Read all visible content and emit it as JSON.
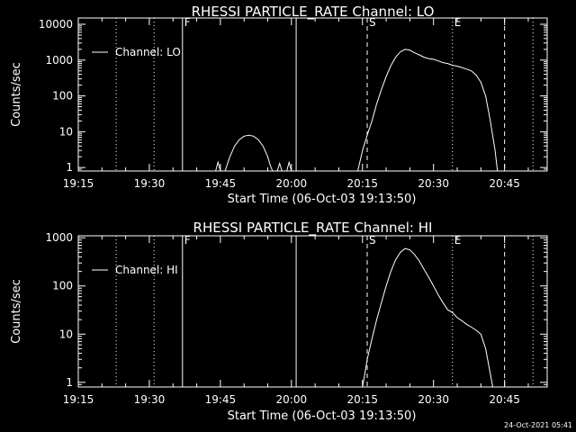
{
  "footer_timestamp": "24-Oct-2021 05:41",
  "chart_data": [
    {
      "type": "line",
      "title": "RHESSI PARTICLE_RATE Channel: LO",
      "xlabel": "Start Time (06-Oct-03 19:13:50)",
      "ylabel": "Counts/sec",
      "yscale": "log",
      "xlim_minutes_after_1915": [
        0,
        99
      ],
      "ylim": [
        0.8,
        15000
      ],
      "x_tick_labels": [
        "19:15",
        "19:30",
        "19:45",
        "20:00",
        "20:15",
        "20:30",
        "20:45"
      ],
      "y_tick_labels": [
        "1",
        "10",
        "100",
        "1000",
        "10000"
      ],
      "y_tick_values": [
        1,
        10,
        100,
        1000,
        10000
      ],
      "legend": {
        "label": "Channel: LO",
        "position": "top-left"
      },
      "markers": [
        {
          "time": "19:23",
          "style": "dotted",
          "label": ""
        },
        {
          "time": "19:37",
          "style": "solid",
          "label": "F"
        },
        {
          "time": "19:31",
          "style": "dotted",
          "label": ""
        },
        {
          "time": "20:01",
          "style": "solid",
          "label": ""
        },
        {
          "time": "20:16",
          "style": "dashed",
          "label": "S"
        },
        {
          "time": "20:34",
          "style": "dotted",
          "label": "E"
        },
        {
          "time": "20:45",
          "style": "dashed",
          "label": ""
        },
        {
          "time": "20:51",
          "style": "dotted",
          "label": ""
        }
      ],
      "series": [
        {
          "segments": [
            [
              [
                "19:44.0",
                0.8
              ],
              [
                "19:44.5",
                1.4
              ],
              [
                "19:45.0",
                0.8
              ]
            ],
            [
              [
                "19:46.0",
                0.8
              ],
              [
                "19:47.0",
                2
              ],
              [
                "19:48.0",
                4
              ],
              [
                "19:49.0",
                6
              ],
              [
                "19:50.0",
                7.5
              ],
              [
                "19:51.0",
                8
              ],
              [
                "19:52.0",
                7.5
              ],
              [
                "19:53.0",
                6
              ],
              [
                "19:54.0",
                4
              ],
              [
                "19:55.0",
                2
              ],
              [
                "19:55.5",
                1.2
              ],
              [
                "19:56.0",
                0.8
              ]
            ],
            [
              [
                "19:57.0",
                0.8
              ],
              [
                "19:57.5",
                1.3
              ],
              [
                "19:58.0",
                0.8
              ]
            ],
            [
              [
                "19:59.0",
                0.8
              ],
              [
                "19:59.5",
                1.4
              ],
              [
                "20:00.0",
                0.8
              ]
            ],
            [
              [
                "20:14.0",
                0.8
              ],
              [
                "20:15.0",
                3
              ],
              [
                "20:16.0",
                8
              ],
              [
                "20:17.0",
                20
              ],
              [
                "20:18.0",
                60
              ],
              [
                "20:19.0",
                150
              ],
              [
                "20:20.0",
                350
              ],
              [
                "20:21.0",
                700
              ],
              [
                "20:22.0",
                1200
              ],
              [
                "20:23.0",
                1700
              ],
              [
                "20:24.0",
                2000
              ],
              [
                "20:25.0",
                1900
              ],
              [
                "20:26.0",
                1600
              ],
              [
                "20:27.0",
                1400
              ],
              [
                "20:28.0",
                1200
              ],
              [
                "20:29.0",
                1100
              ],
              [
                "20:30.0",
                1050
              ],
              [
                "20:31.0",
                950
              ],
              [
                "20:32.0",
                850
              ],
              [
                "20:33.0",
                800
              ],
              [
                "20:34.0",
                720
              ],
              [
                "20:35.0",
                680
              ],
              [
                "20:36.0",
                620
              ],
              [
                "20:37.0",
                560
              ],
              [
                "20:38.0",
                500
              ],
              [
                "20:39.0",
                380
              ],
              [
                "20:40.0",
                240
              ],
              [
                "20:41.0",
                100
              ],
              [
                "20:42.0",
                20
              ],
              [
                "20:43.0",
                3
              ],
              [
                "20:43.5",
                0.8
              ]
            ]
          ]
        }
      ]
    },
    {
      "type": "line",
      "title": "RHESSI PARTICLE_RATE Channel: HI",
      "xlabel": "Start Time (06-Oct-03 19:13:50)",
      "ylabel": "Counts/sec",
      "yscale": "log",
      "xlim_minutes_after_1915": [
        0,
        99
      ],
      "ylim": [
        0.8,
        1100
      ],
      "x_tick_labels": [
        "19:15",
        "19:30",
        "19:45",
        "20:00",
        "20:15",
        "20:30",
        "20:45"
      ],
      "y_tick_labels": [
        "1",
        "10",
        "100",
        "1000"
      ],
      "y_tick_values": [
        1,
        10,
        100,
        1000
      ],
      "legend": {
        "label": "Channel: HI",
        "position": "top-left"
      },
      "markers": [
        {
          "time": "19:23",
          "style": "dotted",
          "label": ""
        },
        {
          "time": "19:37",
          "style": "solid",
          "label": "F"
        },
        {
          "time": "19:31",
          "style": "dotted",
          "label": ""
        },
        {
          "time": "20:01",
          "style": "solid",
          "label": ""
        },
        {
          "time": "20:16",
          "style": "dashed",
          "label": "S"
        },
        {
          "time": "20:34",
          "style": "dotted",
          "label": "E"
        },
        {
          "time": "20:45",
          "style": "dashed",
          "label": ""
        },
        {
          "time": "20:51",
          "style": "dotted",
          "label": ""
        }
      ],
      "series": [
        {
          "segments": [
            [
              [
                "20:15.0",
                0.8
              ],
              [
                "20:15.5",
                1.5
              ],
              [
                "20:16.0",
                3
              ],
              [
                "20:17.0",
                8
              ],
              [
                "20:18.0",
                20
              ],
              [
                "20:19.0",
                45
              ],
              [
                "20:20.0",
                100
              ],
              [
                "20:21.0",
                200
              ],
              [
                "20:22.0",
                350
              ],
              [
                "20:23.0",
                500
              ],
              [
                "20:24.0",
                600
              ],
              [
                "20:25.0",
                560
              ],
              [
                "20:26.0",
                450
              ],
              [
                "20:27.0",
                330
              ],
              [
                "20:28.0",
                220
              ],
              [
                "20:29.0",
                150
              ],
              [
                "20:30.0",
                100
              ],
              [
                "20:31.0",
                65
              ],
              [
                "20:32.0",
                45
              ],
              [
                "20:33.0",
                32
              ],
              [
                "20:34.0",
                28
              ],
              [
                "20:35.0",
                22
              ],
              [
                "20:36.0",
                19
              ],
              [
                "20:37.0",
                16
              ],
              [
                "20:38.0",
                14
              ],
              [
                "20:39.0",
                12
              ],
              [
                "20:40.0",
                10
              ],
              [
                "20:41.0",
                5
              ],
              [
                "20:42.0",
                1.5
              ],
              [
                "20:42.5",
                0.8
              ]
            ]
          ]
        }
      ]
    }
  ]
}
